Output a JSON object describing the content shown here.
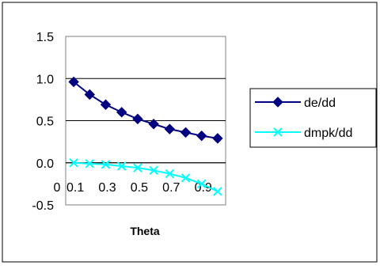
{
  "chart_data": {
    "type": "line",
    "title": "",
    "xlabel": "Theta",
    "ylabel": "",
    "x": [
      0.1,
      0.2,
      0.3,
      0.4,
      0.5,
      0.6,
      0.7,
      0.8,
      0.9,
      1.0
    ],
    "x_tick_labels": [
      "0",
      "0.1",
      "0.3",
      "0.5",
      "0.7",
      "0.9"
    ],
    "y_tick_labels": [
      "1.5",
      "1.0",
      "0.5",
      "0.0",
      "-0.5"
    ],
    "ylim": [
      -0.5,
      1.5
    ],
    "y_ticks": [
      1.5,
      1.0,
      0.5,
      0.0,
      -0.5
    ],
    "grid": true,
    "legend_position": "right",
    "series": [
      {
        "name": "de/dd",
        "color": "#000080",
        "marker": "diamond",
        "values": [
          0.96,
          0.81,
          0.69,
          0.6,
          0.52,
          0.46,
          0.4,
          0.36,
          0.32,
          0.29
        ]
      },
      {
        "name": "dmpk/dd",
        "color": "#00FFFF",
        "marker": "x",
        "values": [
          0.0,
          -0.01,
          -0.02,
          -0.04,
          -0.06,
          -0.09,
          -0.13,
          -0.18,
          -0.25,
          -0.34
        ]
      }
    ]
  }
}
